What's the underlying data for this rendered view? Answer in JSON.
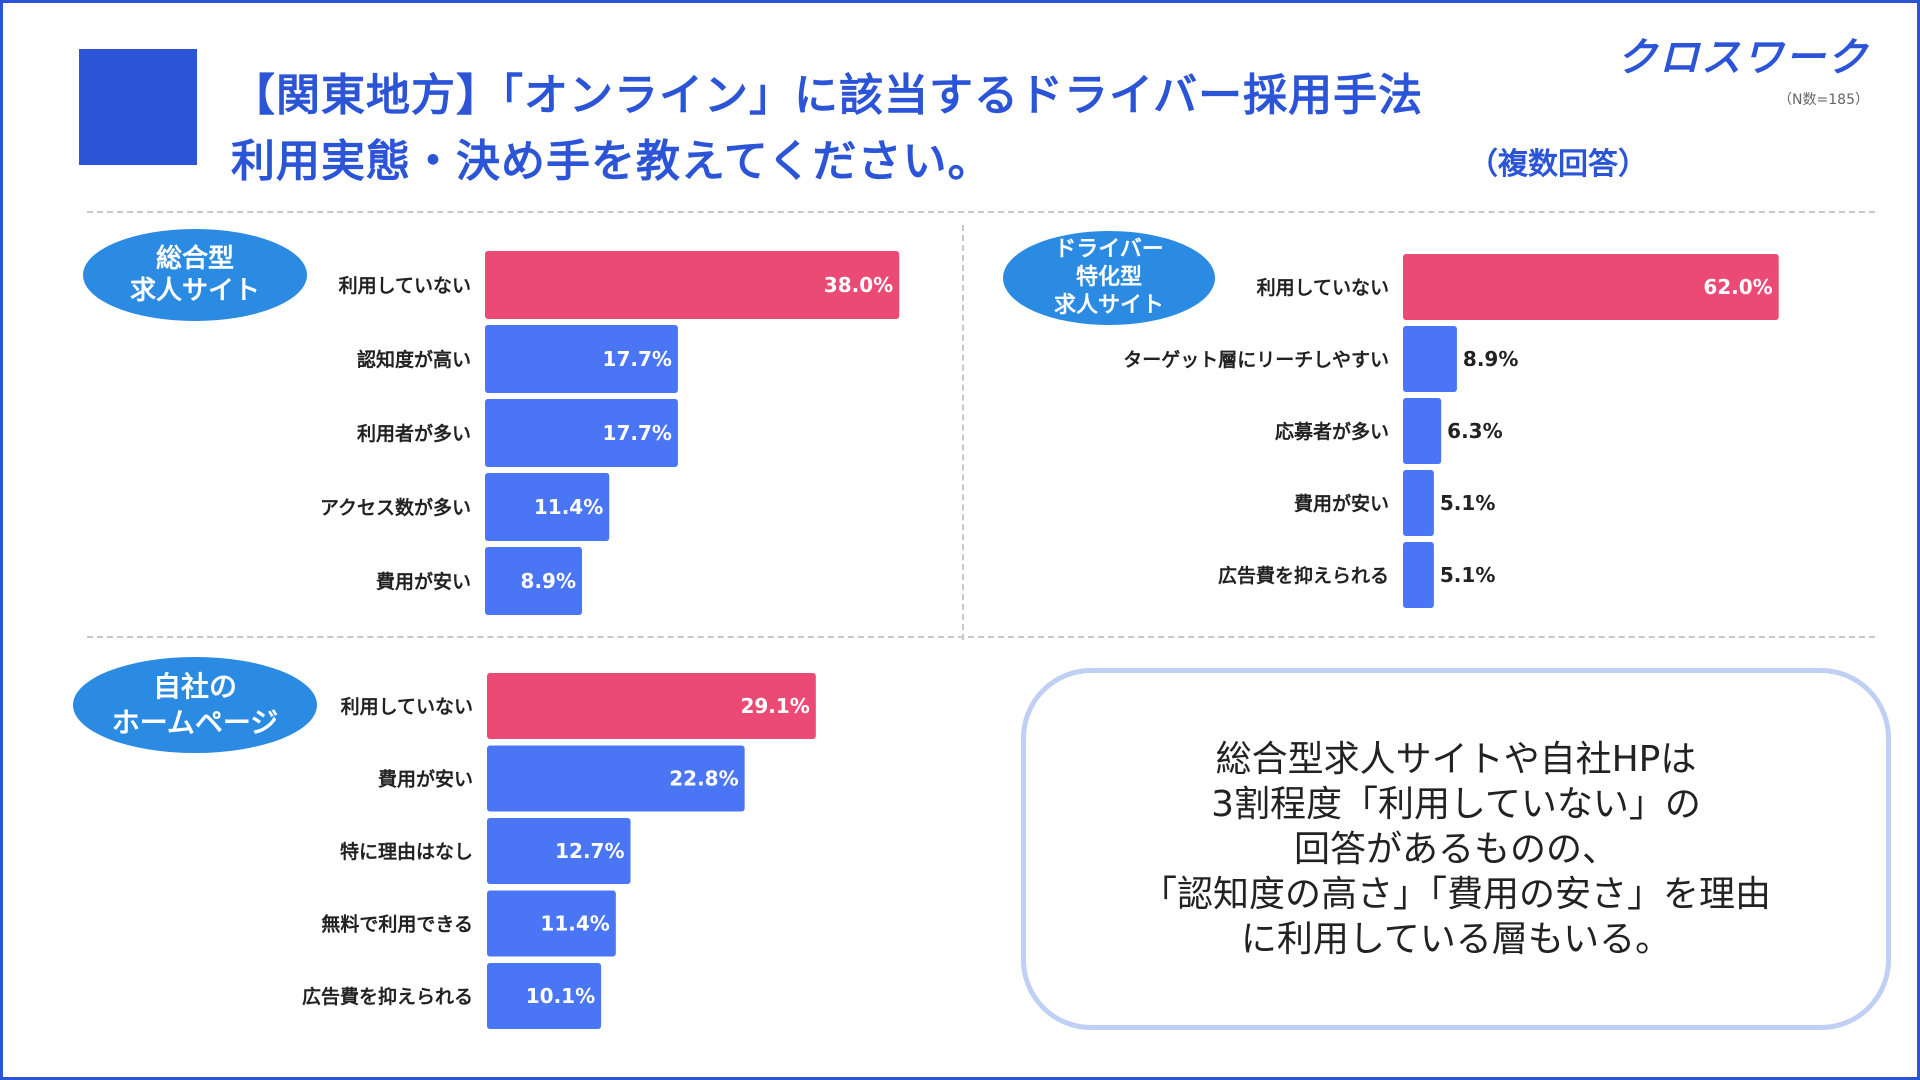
{
  "header": {
    "title_line1": "【関東地方】「オンライン」に該当するドライバー採用手法",
    "title_line2": "利用実態・決め手を教えてください。",
    "multiple_answers": "（複数回答）",
    "logo": "クロスワーク",
    "sample_size": "（N数=185）"
  },
  "colors": {
    "brand_blue": "#2b55d6",
    "pill_blue": "#2b8ae2",
    "bar_blue": "#4a75f5",
    "bar_pink": "#ea4a73",
    "summary_border": "#bfd0f4"
  },
  "panels": {
    "general": {
      "title_line1": "総合型",
      "title_line2": "求人サイト"
    },
    "driver": {
      "title_line1": "ドライバー",
      "title_line2": "特化型",
      "title_line3": "求人サイト"
    },
    "homepage": {
      "title_line1": "自社の",
      "title_line2": "ホームページ"
    }
  },
  "chart_data": [
    {
      "type": "bar",
      "orientation": "horizontal",
      "title": "総合型求人サイト",
      "unit": "%",
      "categories": [
        "利用していない",
        "認知度が高い",
        "利用者が多い",
        "アクセス数が多い",
        "費用が安い"
      ],
      "values": [
        38.0,
        17.7,
        17.7,
        11.4,
        8.9
      ],
      "labels": [
        "38.0%",
        "17.7%",
        "17.7%",
        "11.4%",
        "8.9%"
      ],
      "highlight_index": 0,
      "xlim": [
        0,
        100
      ]
    },
    {
      "type": "bar",
      "orientation": "horizontal",
      "title": "ドライバー特化型求人サイト",
      "unit": "%",
      "categories": [
        "利用していない",
        "ターゲット層にリーチしやすい",
        "応募者が多い",
        "費用が安い",
        "広告費を抑えられる"
      ],
      "values": [
        62.0,
        8.9,
        6.3,
        5.1,
        5.1
      ],
      "labels": [
        "62.0%",
        "8.9%",
        "6.3%",
        "5.1%",
        "5.1%"
      ],
      "highlight_index": 0,
      "xlim": [
        0,
        100
      ]
    },
    {
      "type": "bar",
      "orientation": "horizontal",
      "title": "自社のホームページ",
      "unit": "%",
      "categories": [
        "利用していない",
        "費用が安い",
        "特に理由はなし",
        "無料で利用できる",
        "広告費を抑えられる"
      ],
      "values": [
        29.1,
        22.8,
        12.7,
        11.4,
        10.1
      ],
      "labels": [
        "29.1%",
        "22.8%",
        "12.7%",
        "11.4%",
        "10.1%"
      ],
      "highlight_index": 0,
      "xlim": [
        0,
        100
      ]
    }
  ],
  "summary": {
    "line1": "総合型求人サイトや自社HPは",
    "line2": "3割程度「利用していない」の",
    "line3": "回答があるものの、",
    "line4": "「認知度の高さ」「費用の安さ」を理由",
    "line5": "に利用している層もいる。"
  }
}
